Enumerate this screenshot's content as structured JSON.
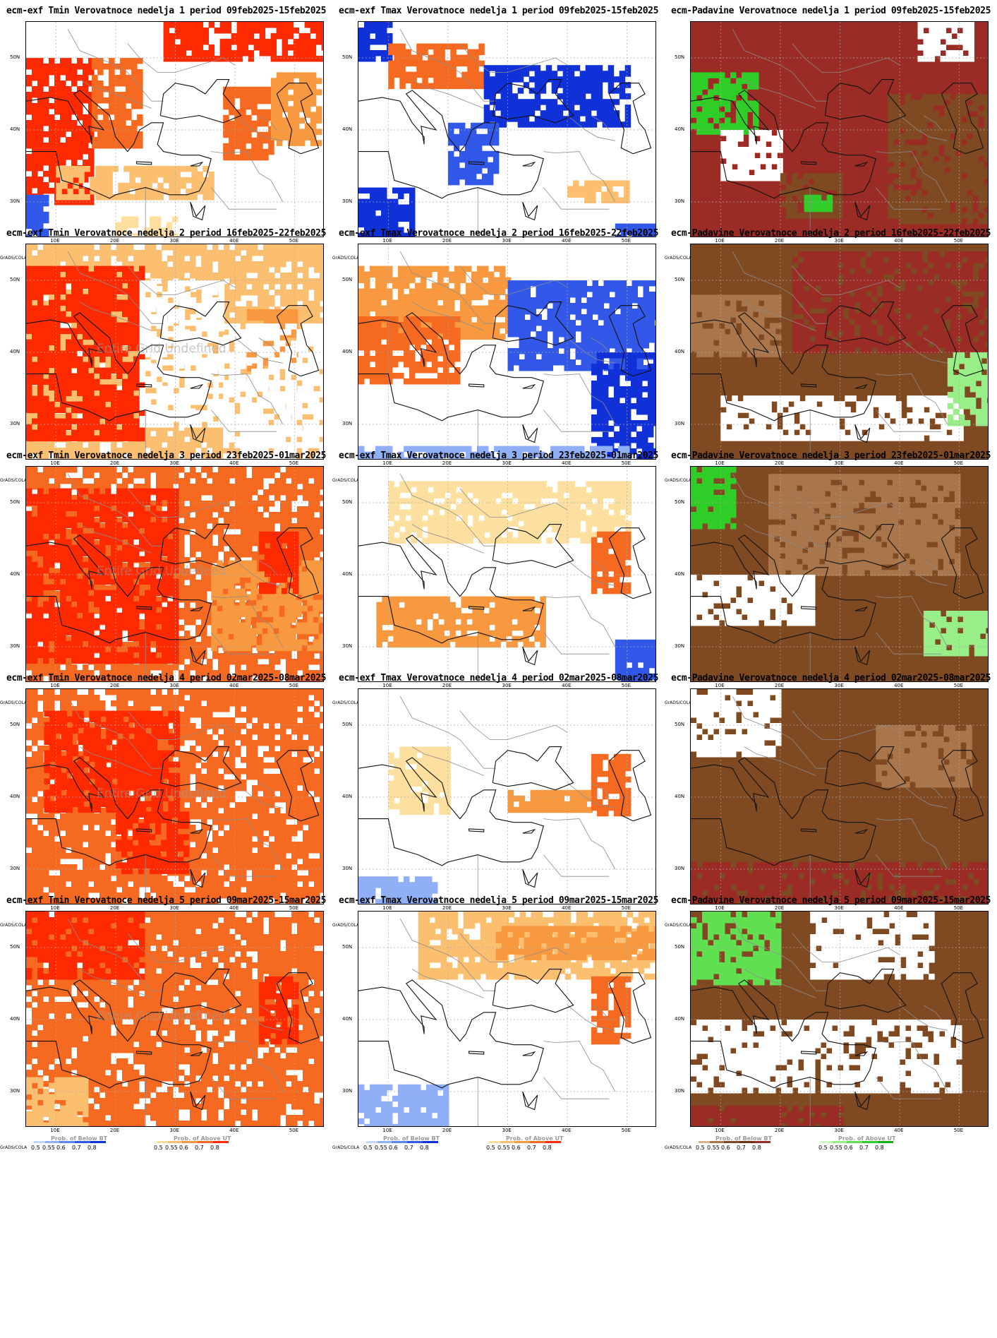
{
  "colors": {
    "tmin_above": [
      "#fde0a0",
      "#fcbf6f",
      "#f9993f",
      "#f56a20",
      "#ff2a00"
    ],
    "tmax_below": [
      "#c5d6fb",
      "#8fb0f7",
      "#5c86f2",
      "#3158e8",
      "#1030d8"
    ],
    "tmax_above": [
      "#fde0a0",
      "#fcbf6f",
      "#f9993f",
      "#f56a20",
      "#ff2a00"
    ],
    "prec_below": [
      "#d9b48a",
      "#a8764a",
      "#7f4a22",
      "#6a3414",
      "#9a2b25"
    ],
    "prec_above": [
      "#c9f7c0",
      "#98ef88",
      "#60e050",
      "#30cc28",
      "#10b010"
    ]
  },
  "weeks": [
    {
      "label": "1",
      "period": "09feb2025-15feb2025"
    },
    {
      "label": "2",
      "period": "16feb2025-22feb2025"
    },
    {
      "label": "3",
      "period": "23feb2025-01mar2025"
    },
    {
      "label": "4",
      "period": "02mar2025-08mar2025"
    },
    {
      "label": "5",
      "period": "09mar2025-15mar2025"
    }
  ],
  "columns": [
    {
      "prefix": "ecm-exf Tmin Verovatnoce nedelja",
      "variable": "tmin"
    },
    {
      "prefix": "ecm-exf Tmax Verovatnoce nedelja",
      "variable": "tmax"
    },
    {
      "prefix": "ecm-Padavine Verovatnoce nedelja",
      "variable": "prec"
    }
  ],
  "period_word": "period",
  "lat_labels": [
    "50N",
    "40N",
    "30N"
  ],
  "lon_labels": [
    "10E",
    "20E",
    "30E",
    "40E",
    "50E"
  ],
  "legend": {
    "below_title": "Prob. of Below BT",
    "above_title": "Prob. of Above UT",
    "levels": [
      "0.5",
      "0.55",
      "0.6",
      "0.7",
      "0.8"
    ],
    "grads": "GrADS/COLA"
  },
  "undefined_text": "Entire Grid Undefined",
  "map_extent": {
    "lon": [
      5,
      55
    ],
    "lat": [
      25,
      55
    ]
  },
  "panels": [
    {
      "variable": "tmin",
      "week": 1,
      "undefined": false,
      "fills": [
        {
          "lon": [
            5,
            16
          ],
          "lat": [
            30,
            50
          ],
          "level": 4
        },
        {
          "lon": [
            16,
            24
          ],
          "lat": [
            38,
            50
          ],
          "level": 3
        },
        {
          "lon": [
            28,
            55
          ],
          "lat": [
            50,
            55
          ],
          "level": 4
        },
        {
          "lon": [
            38,
            46
          ],
          "lat": [
            36,
            46
          ],
          "level": 3
        },
        {
          "lon": [
            46,
            54
          ],
          "lat": [
            38,
            48
          ],
          "level": 2
        },
        {
          "lon": [
            5,
            8
          ],
          "lat": [
            25,
            31
          ],
          "bclass": "tmax_below",
          "level": 3
        },
        {
          "lon": [
            10,
            36
          ],
          "lat": [
            31,
            35
          ],
          "level": 1
        },
        {
          "lon": [
            20,
            30
          ],
          "lat": [
            25,
            28
          ],
          "level": 0
        }
      ]
    },
    {
      "variable": "tmax",
      "week": 1,
      "undefined": false,
      "fills": [
        {
          "lon": [
            5,
            10
          ],
          "lat": [
            50,
            55
          ],
          "bclass": "tmax_below",
          "level": 4
        },
        {
          "lon": [
            10,
            26
          ],
          "lat": [
            46,
            52
          ],
          "level": 3
        },
        {
          "lon": [
            26,
            50
          ],
          "lat": [
            41,
            49
          ],
          "bclass": "tmax_below",
          "level": 4
        },
        {
          "lon": [
            20,
            28
          ],
          "lat": [
            33,
            41
          ],
          "bclass": "tmax_below",
          "level": 3
        },
        {
          "lon": [
            5,
            14
          ],
          "lat": [
            25,
            32
          ],
          "bclass": "tmax_below",
          "level": 4
        },
        {
          "lon": [
            40,
            50
          ],
          "lat": [
            30,
            33
          ],
          "level": 1
        },
        {
          "lon": [
            48,
            55
          ],
          "lat": [
            25,
            27
          ],
          "bclass": "tmax_below",
          "level": 3
        }
      ]
    },
    {
      "variable": "prec",
      "week": 1,
      "undefined": false,
      "base": "#9a2b25",
      "fills": [
        {
          "lon": [
            5,
            16
          ],
          "lat": [
            40,
            48
          ],
          "bclass": "prec_above",
          "level": 3
        },
        {
          "lon": [
            10,
            20
          ],
          "lat": [
            33,
            40
          ],
          "bclass": "white",
          "level": 0
        },
        {
          "lon": [
            20,
            30
          ],
          "lat": [
            28,
            34
          ],
          "bclass": "prec_below",
          "level": 2
        },
        {
          "lon": [
            38,
            55
          ],
          "lat": [
            27,
            45
          ],
          "bclass": "prec_below",
          "level": 2
        },
        {
          "lon": [
            43,
            52
          ],
          "lat": [
            50,
            55
          ],
          "bclass": "white",
          "level": 0
        },
        {
          "lon": [
            24,
            28
          ],
          "lat": [
            29,
            31
          ],
          "bclass": "prec_above",
          "level": 3
        }
      ]
    },
    {
      "variable": "tmin",
      "week": 2,
      "undefined": true,
      "fills": [
        {
          "lon": [
            5,
            55
          ],
          "lat": [
            25,
            55
          ],
          "level": 1
        },
        {
          "lon": [
            5,
            24
          ],
          "lat": [
            28,
            52
          ],
          "level": 4
        },
        {
          "lon": [
            24,
            38
          ],
          "lat": [
            30,
            50
          ],
          "bclass": "white",
          "level": 0
        },
        {
          "lon": [
            42,
            50
          ],
          "lat": [
            38,
            46
          ],
          "level": 2
        },
        {
          "lon": [
            38,
            55
          ],
          "lat": [
            25,
            44
          ],
          "bclass": "white",
          "level": 0
        }
      ]
    },
    {
      "variable": "tmax",
      "week": 2,
      "undefined": false,
      "fills": [
        {
          "lon": [
            5,
            30
          ],
          "lat": [
            42,
            52
          ],
          "level": 2
        },
        {
          "lon": [
            5,
            22
          ],
          "lat": [
            36,
            45
          ],
          "level": 3
        },
        {
          "lon": [
            30,
            55
          ],
          "lat": [
            38,
            50
          ],
          "bclass": "tmax_below",
          "level": 3
        },
        {
          "lon": [
            44,
            55
          ],
          "lat": [
            25,
            40
          ],
          "bclass": "tmax_below",
          "level": 4
        },
        {
          "lon": [
            5,
            50
          ],
          "lat": [
            25,
            27
          ],
          "bclass": "tmax_below",
          "level": 1
        }
      ]
    },
    {
      "variable": "prec",
      "week": 2,
      "undefined": false,
      "base": "#7f4a22",
      "fills": [
        {
          "lon": [
            22,
            55
          ],
          "lat": [
            40,
            54
          ],
          "bclass": "prec_below",
          "level": 4
        },
        {
          "lon": [
            10,
            50
          ],
          "lat": [
            28,
            34
          ],
          "bclass": "white",
          "level": 0
        },
        {
          "lon": [
            5,
            20
          ],
          "lat": [
            40,
            48
          ],
          "bclass": "prec_below",
          "level": 1
        },
        {
          "lon": [
            48,
            55
          ],
          "lat": [
            30,
            40
          ],
          "bclass": "prec_above",
          "level": 1
        }
      ]
    },
    {
      "variable": "tmin",
      "week": 3,
      "undefined": true,
      "fills": [
        {
          "lon": [
            5,
            55
          ],
          "lat": [
            25,
            55
          ],
          "level": 3
        },
        {
          "lon": [
            5,
            30
          ],
          "lat": [
            28,
            52
          ],
          "level": 4
        },
        {
          "lon": [
            36,
            55
          ],
          "lat": [
            30,
            42
          ],
          "level": 2
        },
        {
          "lon": [
            44,
            50
          ],
          "lat": [
            38,
            46
          ],
          "level": 4
        }
      ]
    },
    {
      "variable": "tmax",
      "week": 3,
      "undefined": false,
      "fills": [
        {
          "lon": [
            10,
            50
          ],
          "lat": [
            45,
            53
          ],
          "level": 0
        },
        {
          "lon": [
            8,
            36
          ],
          "lat": [
            30,
            37
          ],
          "level": 2
        },
        {
          "lon": [
            44,
            50
          ],
          "lat": [
            38,
            46
          ],
          "level": 3
        },
        {
          "lon": [
            48,
            55
          ],
          "lat": [
            25,
            31
          ],
          "bclass": "tmax_below",
          "level": 3
        }
      ]
    },
    {
      "variable": "prec",
      "week": 3,
      "undefined": false,
      "base": "#7f4a22",
      "fills": [
        {
          "lon": [
            5,
            12
          ],
          "lat": [
            47,
            55
          ],
          "bclass": "prec_above",
          "level": 3
        },
        {
          "lon": [
            18,
            50
          ],
          "lat": [
            40,
            54
          ],
          "bclass": "prec_below",
          "level": 1
        },
        {
          "lon": [
            44,
            55
          ],
          "lat": [
            29,
            35
          ],
          "bclass": "prec_above",
          "level": 1
        },
        {
          "lon": [
            5,
            25
          ],
          "lat": [
            33,
            40
          ],
          "bclass": "white",
          "level": 0
        }
      ]
    },
    {
      "variable": "tmin",
      "week": 4,
      "undefined": true,
      "fills": [
        {
          "lon": [
            5,
            55
          ],
          "lat": [
            25,
            55
          ],
          "level": 3
        },
        {
          "lon": [
            8,
            30
          ],
          "lat": [
            38,
            52
          ],
          "level": 4
        },
        {
          "lon": [
            20,
            32
          ],
          "lat": [
            30,
            38
          ],
          "level": 4
        }
      ]
    },
    {
      "variable": "tmax",
      "week": 4,
      "undefined": false,
      "fills": [
        {
          "lon": [
            10,
            20
          ],
          "lat": [
            38,
            47
          ],
          "level": 0
        },
        {
          "lon": [
            30,
            44
          ],
          "lat": [
            38,
            41
          ],
          "level": 2
        },
        {
          "lon": [
            44,
            50
          ],
          "lat": [
            38,
            46
          ],
          "level": 3
        },
        {
          "lon": [
            5,
            18
          ],
          "lat": [
            25,
            29
          ],
          "bclass": "tmax_below",
          "level": 1
        }
      ]
    },
    {
      "variable": "prec",
      "week": 4,
      "undefined": false,
      "base": "#7f4a22",
      "fills": [
        {
          "lon": [
            5,
            55
          ],
          "lat": [
            25,
            31
          ],
          "bclass": "prec_below",
          "level": 4
        },
        {
          "lon": [
            5,
            20
          ],
          "lat": [
            46,
            55
          ],
          "bclass": "white",
          "level": 0
        },
        {
          "lon": [
            36,
            52
          ],
          "lat": [
            42,
            50
          ],
          "bclass": "prec_below",
          "level": 1
        }
      ]
    },
    {
      "variable": "tmin",
      "week": 5,
      "undefined": true,
      "fills": [
        {
          "lon": [
            5,
            55
          ],
          "lat": [
            25,
            55
          ],
          "level": 3
        },
        {
          "lon": [
            5,
            24
          ],
          "lat": [
            46,
            55
          ],
          "level": 4
        },
        {
          "lon": [
            44,
            50
          ],
          "lat": [
            37,
            46
          ],
          "level": 4
        },
        {
          "lon": [
            5,
            15
          ],
          "lat": [
            25,
            32
          ],
          "level": 1
        }
      ]
    },
    {
      "variable": "tmax",
      "week": 5,
      "undefined": false,
      "fills": [
        {
          "lon": [
            15,
            55
          ],
          "lat": [
            46,
            55
          ],
          "level": 1
        },
        {
          "lon": [
            28,
            55
          ],
          "lat": [
            49,
            53
          ],
          "level": 2
        },
        {
          "lon": [
            44,
            50
          ],
          "lat": [
            37,
            46
          ],
          "level": 3
        },
        {
          "lon": [
            5,
            20
          ],
          "lat": [
            25,
            31
          ],
          "bclass": "tmax_below",
          "level": 1
        }
      ]
    },
    {
      "variable": "prec",
      "week": 5,
      "undefined": false,
      "base": "#7f4a22",
      "fills": [
        {
          "lon": [
            5,
            20
          ],
          "lat": [
            45,
            55
          ],
          "bclass": "prec_above",
          "level": 2
        },
        {
          "lon": [
            25,
            45
          ],
          "lat": [
            46,
            55
          ],
          "bclass": "white",
          "level": 0
        },
        {
          "lon": [
            5,
            30
          ],
          "lat": [
            25,
            28
          ],
          "bclass": "prec_below",
          "level": 4
        },
        {
          "lon": [
            5,
            50
          ],
          "lat": [
            30,
            40
          ],
          "bclass": "white",
          "level": 0
        }
      ]
    }
  ]
}
